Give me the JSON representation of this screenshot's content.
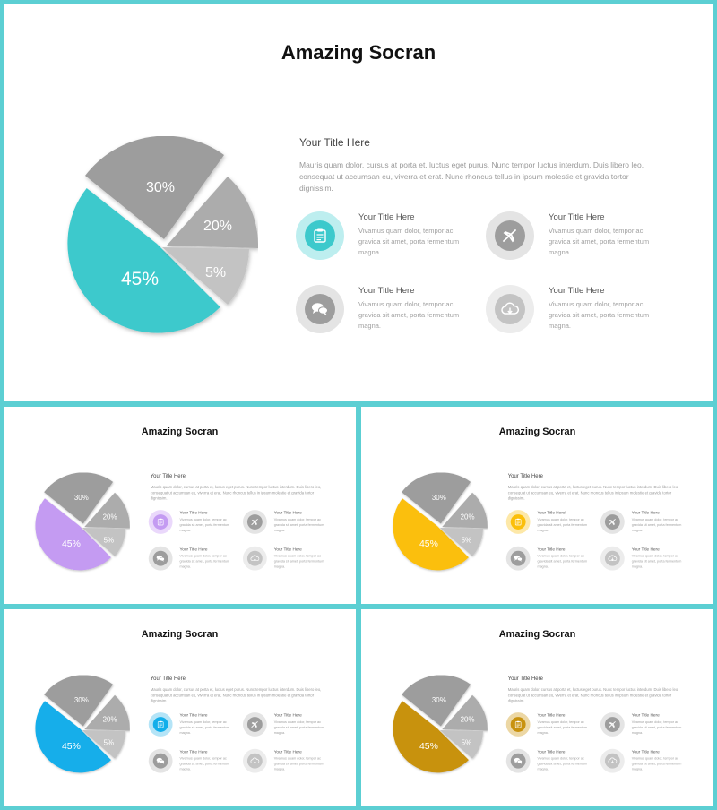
{
  "slide": {
    "title": "Amazing Socran",
    "heading": "Your Title Here",
    "description": "Mauris quam dolor, cursus at porta et, luctus eget purus. Nunc tempor luctus interdum. Duis libero leo, consequat ut accumsan eu, viverra et erat. Nunc rhoncus tellus in ipsum molestie et gravida tortor dignissim.",
    "pie_labels": [
      "45%",
      "30%",
      "20%",
      "5%"
    ],
    "features": [
      {
        "title": "Your Title Here",
        "text": "Vivamus quam dolor, tempor ac gravida sit amet, porta fermentum magna.",
        "icon": "clipboard-icon"
      },
      {
        "title": "Your Title Here",
        "text": "Vivamus quam dolor, tempor ac gravida sit amet, porta fermentum magna.",
        "icon": "airplane-icon"
      },
      {
        "title": "Your Title Here",
        "text": "Vivamus quam dolor, tempor ac gravida sit amet, porta fermentum magna.",
        "icon": "chat-icon"
      },
      {
        "title": "Your Title Here",
        "text": "Vivamus quam dolor, tempor ac gravida sit amet, porta fermentum magna.",
        "icon": "cloud-download-icon"
      }
    ]
  },
  "variants": [
    {
      "accent": "#3cc9cc",
      "accent_light": "#bdeeef"
    },
    {
      "accent": "#c49bf2",
      "accent_light": "#ead8fb"
    },
    {
      "accent": "#fbbf0a",
      "accent_light": "#fde8a8"
    },
    {
      "accent": "#12aeea",
      "accent_light": "#b4e4f7"
    },
    {
      "accent": "#c8920f",
      "accent_light": "#ecd7a4"
    }
  ],
  "colors": {
    "frame": "#5ccfd3",
    "gray_dark": "#9d9d9d",
    "gray_mid": "#acacac",
    "gray_light": "#c3c3c3"
  },
  "small_feature_title_overrides": {
    "2": {
      "0": "Your Title Herel"
    }
  }
}
